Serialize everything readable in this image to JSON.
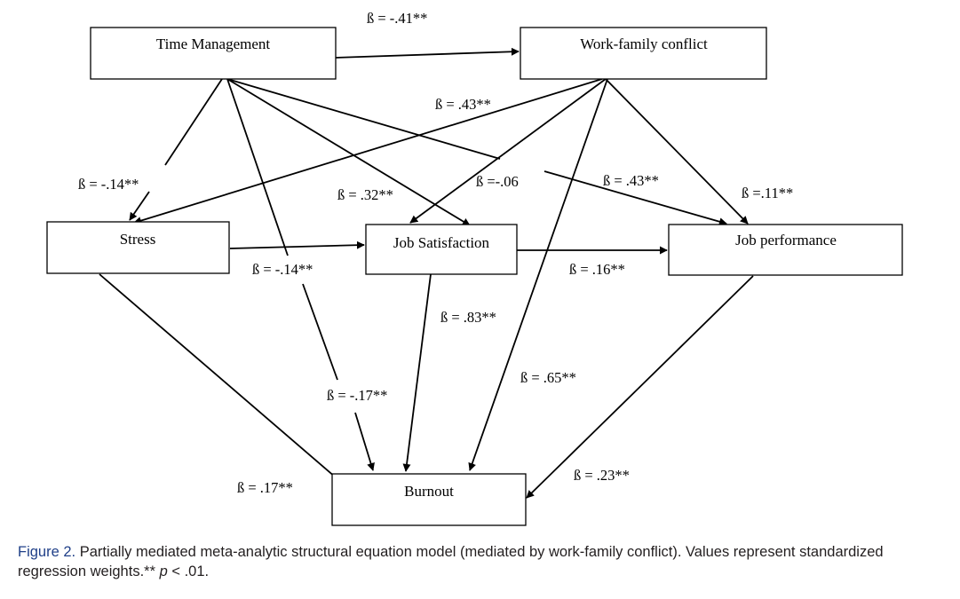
{
  "nodes": {
    "time_management": "Time Management",
    "work_family_conflict": "Work-family conflict",
    "stress": "Stress",
    "job_satisfaction": "Job Satisfaction",
    "job_performance": "Job performance",
    "burnout": "Burnout"
  },
  "edges": {
    "tm_wfc": "ß = -.41**",
    "wfc_stress": "ß = .43**",
    "tm_stress": "ß = -.14**",
    "wfc_js": "ß = .32**",
    "tm_js": "ß =-.06",
    "tm_jp": "ß = .43**",
    "wfc_jp": "ß =.11**",
    "tm_burnout": "ß = -.14**",
    "js_jp": "ß = .16**",
    "js_burnout": "ß = .83**",
    "wfc_burnout": "ß = .65**",
    "stress_burnout_a": "ß = -.17**",
    "stress_burnout_b": "ß = .17**",
    "jp_burnout": "ß = .23**"
  },
  "caption": {
    "label": "Figure 2.",
    "text": " Partially mediated meta-analytic structural equation model (mediated by work-family conflict). Values represent standardized regression weights.** ",
    "p_symbol": "p",
    "threshold": " < .01."
  },
  "colors": {
    "caption_label": "#1f3f88",
    "caption_text": "#231f20",
    "lines": "#000000"
  }
}
